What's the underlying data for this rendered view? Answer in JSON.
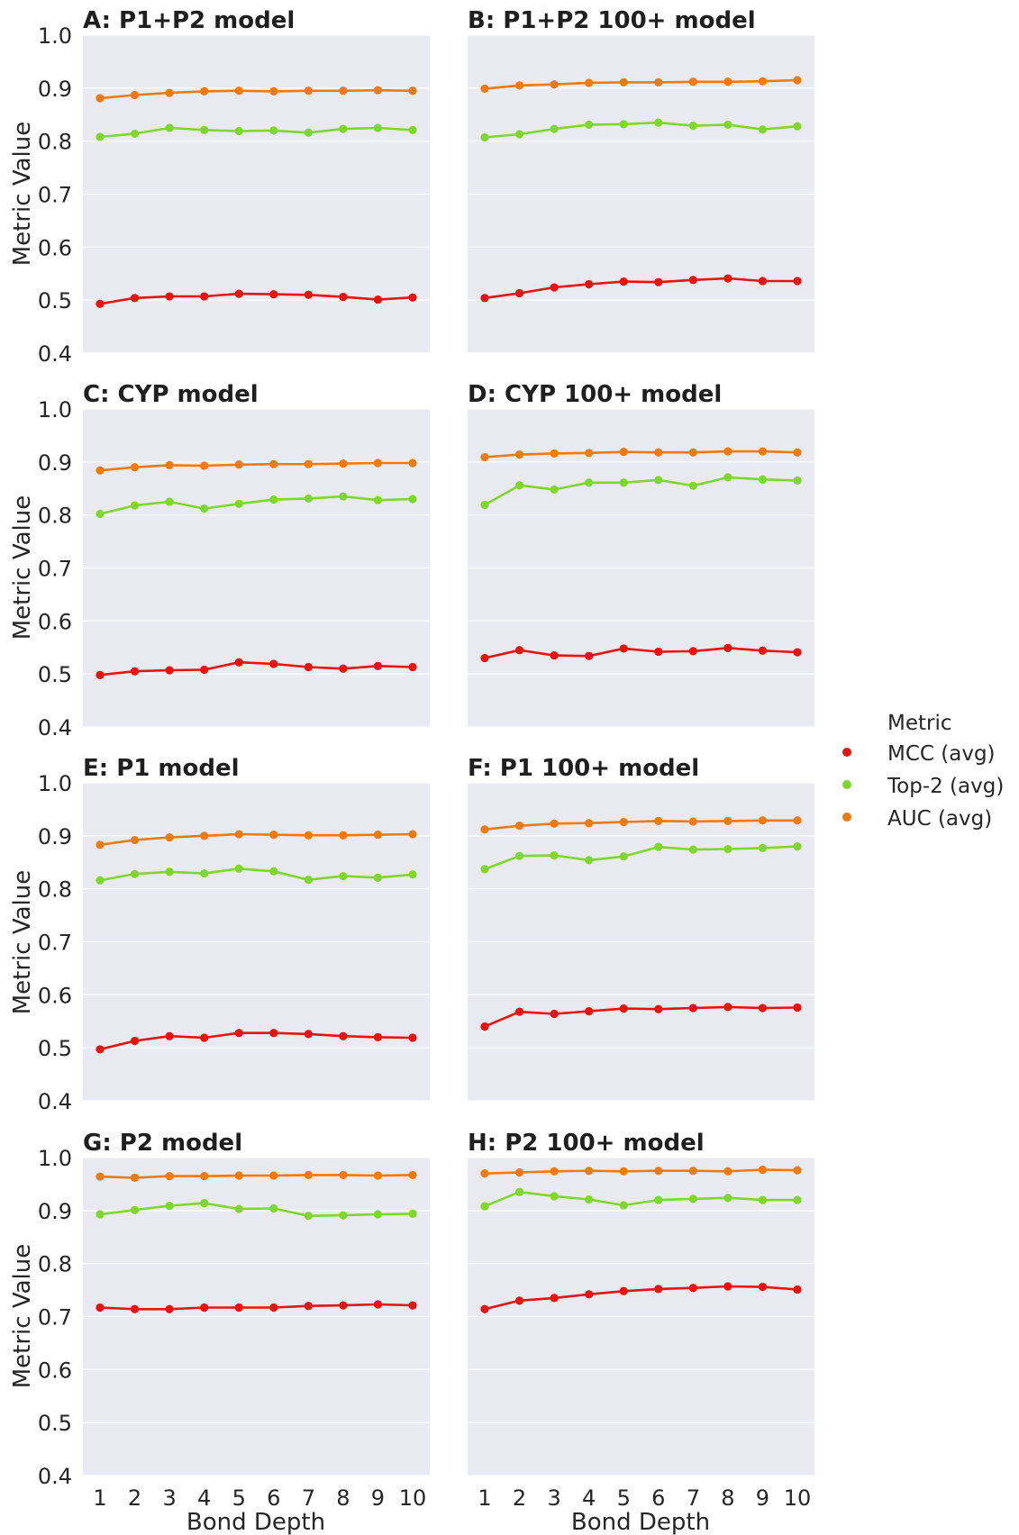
{
  "figure": {
    "y_axis_label": "Metric Value",
    "x_axis_label": "Bond Depth"
  },
  "legend": {
    "title": "Metric",
    "entries": [
      {
        "label": "MCC (avg)",
        "color": "#e8120c"
      },
      {
        "label": "Top-2 (avg)",
        "color": "#7fd72c"
      },
      {
        "label": "AUC (avg)",
        "color": "#ef7a0f"
      }
    ]
  },
  "chart_data": [
    {
      "type": "line",
      "title": "A: P1+P2 model",
      "x": [
        1,
        2,
        3,
        4,
        5,
        6,
        7,
        8,
        9,
        10
      ],
      "ylim": [
        0.4,
        1.0
      ],
      "yticks": [
        0.4,
        0.5,
        0.6,
        0.7,
        0.8,
        0.9,
        1.0
      ],
      "series": [
        {
          "name": "MCC (avg)",
          "values": [
            0.493,
            0.504,
            0.507,
            0.507,
            0.512,
            0.511,
            0.51,
            0.506,
            0.501,
            0.505
          ]
        },
        {
          "name": "Top-2 (avg)",
          "values": [
            0.808,
            0.814,
            0.825,
            0.821,
            0.819,
            0.82,
            0.816,
            0.823,
            0.825,
            0.821
          ]
        },
        {
          "name": "AUC (avg)",
          "values": [
            0.881,
            0.887,
            0.891,
            0.894,
            0.895,
            0.894,
            0.895,
            0.895,
            0.896,
            0.895
          ]
        }
      ]
    },
    {
      "type": "line",
      "title": "B: P1+P2 100+ model",
      "x": [
        1,
        2,
        3,
        4,
        5,
        6,
        7,
        8,
        9,
        10
      ],
      "ylim": [
        0.4,
        1.0
      ],
      "yticks": [
        0.4,
        0.5,
        0.6,
        0.7,
        0.8,
        0.9,
        1.0
      ],
      "series": [
        {
          "name": "MCC (avg)",
          "values": [
            0.504,
            0.513,
            0.524,
            0.53,
            0.535,
            0.534,
            0.538,
            0.541,
            0.536,
            0.536
          ]
        },
        {
          "name": "Top-2 (avg)",
          "values": [
            0.807,
            0.813,
            0.823,
            0.831,
            0.832,
            0.835,
            0.829,
            0.831,
            0.822,
            0.828
          ]
        },
        {
          "name": "AUC (avg)",
          "values": [
            0.899,
            0.905,
            0.907,
            0.91,
            0.911,
            0.911,
            0.912,
            0.912,
            0.913,
            0.915
          ]
        }
      ]
    },
    {
      "type": "line",
      "title": "C: CYP model",
      "x": [
        1,
        2,
        3,
        4,
        5,
        6,
        7,
        8,
        9,
        10
      ],
      "ylim": [
        0.4,
        1.0
      ],
      "yticks": [
        0.4,
        0.5,
        0.6,
        0.7,
        0.8,
        0.9,
        1.0
      ],
      "series": [
        {
          "name": "MCC (avg)",
          "values": [
            0.498,
            0.505,
            0.507,
            0.508,
            0.522,
            0.519,
            0.513,
            0.51,
            0.515,
            0.513
          ]
        },
        {
          "name": "Top-2 (avg)",
          "values": [
            0.802,
            0.818,
            0.825,
            0.812,
            0.821,
            0.829,
            0.831,
            0.835,
            0.828,
            0.83
          ]
        },
        {
          "name": "AUC (avg)",
          "values": [
            0.884,
            0.89,
            0.894,
            0.893,
            0.895,
            0.896,
            0.896,
            0.897,
            0.898,
            0.898
          ]
        }
      ]
    },
    {
      "type": "line",
      "title": "D: CYP 100+ model",
      "x": [
        1,
        2,
        3,
        4,
        5,
        6,
        7,
        8,
        9,
        10
      ],
      "ylim": [
        0.4,
        1.0
      ],
      "yticks": [
        0.4,
        0.5,
        0.6,
        0.7,
        0.8,
        0.9,
        1.0
      ],
      "series": [
        {
          "name": "MCC (avg)",
          "values": [
            0.53,
            0.545,
            0.535,
            0.534,
            0.548,
            0.542,
            0.543,
            0.549,
            0.544,
            0.541
          ]
        },
        {
          "name": "Top-2 (avg)",
          "values": [
            0.819,
            0.856,
            0.848,
            0.861,
            0.861,
            0.866,
            0.855,
            0.871,
            0.867,
            0.865
          ]
        },
        {
          "name": "AUC (avg)",
          "values": [
            0.909,
            0.914,
            0.916,
            0.917,
            0.919,
            0.918,
            0.918,
            0.92,
            0.92,
            0.918
          ]
        }
      ]
    },
    {
      "type": "line",
      "title": "E: P1 model",
      "x": [
        1,
        2,
        3,
        4,
        5,
        6,
        7,
        8,
        9,
        10
      ],
      "ylim": [
        0.4,
        1.0
      ],
      "yticks": [
        0.4,
        0.5,
        0.6,
        0.7,
        0.8,
        0.9,
        1.0
      ],
      "series": [
        {
          "name": "MCC (avg)",
          "values": [
            0.497,
            0.513,
            0.522,
            0.519,
            0.528,
            0.528,
            0.526,
            0.522,
            0.52,
            0.519
          ]
        },
        {
          "name": "Top-2 (avg)",
          "values": [
            0.816,
            0.828,
            0.832,
            0.829,
            0.838,
            0.833,
            0.817,
            0.824,
            0.821,
            0.827
          ]
        },
        {
          "name": "AUC (avg)",
          "values": [
            0.883,
            0.892,
            0.897,
            0.9,
            0.903,
            0.902,
            0.901,
            0.901,
            0.902,
            0.903
          ]
        }
      ]
    },
    {
      "type": "line",
      "title": "F: P1 100+ model",
      "x": [
        1,
        2,
        3,
        4,
        5,
        6,
        7,
        8,
        9,
        10
      ],
      "ylim": [
        0.4,
        1.0
      ],
      "yticks": [
        0.4,
        0.5,
        0.6,
        0.7,
        0.8,
        0.9,
        1.0
      ],
      "series": [
        {
          "name": "MCC (avg)",
          "values": [
            0.54,
            0.568,
            0.564,
            0.569,
            0.574,
            0.573,
            0.575,
            0.577,
            0.575,
            0.576
          ]
        },
        {
          "name": "Top-2 (avg)",
          "values": [
            0.837,
            0.862,
            0.863,
            0.854,
            0.861,
            0.879,
            0.874,
            0.875,
            0.877,
            0.88
          ]
        },
        {
          "name": "AUC (avg)",
          "values": [
            0.912,
            0.919,
            0.923,
            0.924,
            0.926,
            0.928,
            0.927,
            0.928,
            0.929,
            0.929
          ]
        }
      ]
    },
    {
      "type": "line",
      "title": "G: P2 model",
      "x": [
        1,
        2,
        3,
        4,
        5,
        6,
        7,
        8,
        9,
        10
      ],
      "ylim": [
        0.4,
        1.0
      ],
      "yticks": [
        0.4,
        0.5,
        0.6,
        0.7,
        0.8,
        0.9,
        1.0
      ],
      "series": [
        {
          "name": "MCC (avg)",
          "values": [
            0.717,
            0.714,
            0.714,
            0.717,
            0.717,
            0.717,
            0.72,
            0.721,
            0.723,
            0.721
          ]
        },
        {
          "name": "Top-2 (avg)",
          "values": [
            0.893,
            0.901,
            0.909,
            0.914,
            0.903,
            0.904,
            0.89,
            0.891,
            0.893,
            0.894
          ]
        },
        {
          "name": "AUC (avg)",
          "values": [
            0.964,
            0.962,
            0.965,
            0.965,
            0.966,
            0.966,
            0.967,
            0.967,
            0.966,
            0.967
          ]
        }
      ]
    },
    {
      "type": "line",
      "title": "H: P2 100+ model",
      "x": [
        1,
        2,
        3,
        4,
        5,
        6,
        7,
        8,
        9,
        10
      ],
      "ylim": [
        0.4,
        1.0
      ],
      "yticks": [
        0.4,
        0.5,
        0.6,
        0.7,
        0.8,
        0.9,
        1.0
      ],
      "series": [
        {
          "name": "MCC (avg)",
          "values": [
            0.714,
            0.73,
            0.735,
            0.742,
            0.748,
            0.752,
            0.754,
            0.757,
            0.756,
            0.751
          ]
        },
        {
          "name": "Top-2 (avg)",
          "values": [
            0.908,
            0.935,
            0.927,
            0.921,
            0.91,
            0.92,
            0.922,
            0.924,
            0.92,
            0.92
          ]
        },
        {
          "name": "AUC (avg)",
          "values": [
            0.97,
            0.972,
            0.974,
            0.975,
            0.974,
            0.975,
            0.975,
            0.974,
            0.977,
            0.976
          ]
        }
      ]
    }
  ]
}
